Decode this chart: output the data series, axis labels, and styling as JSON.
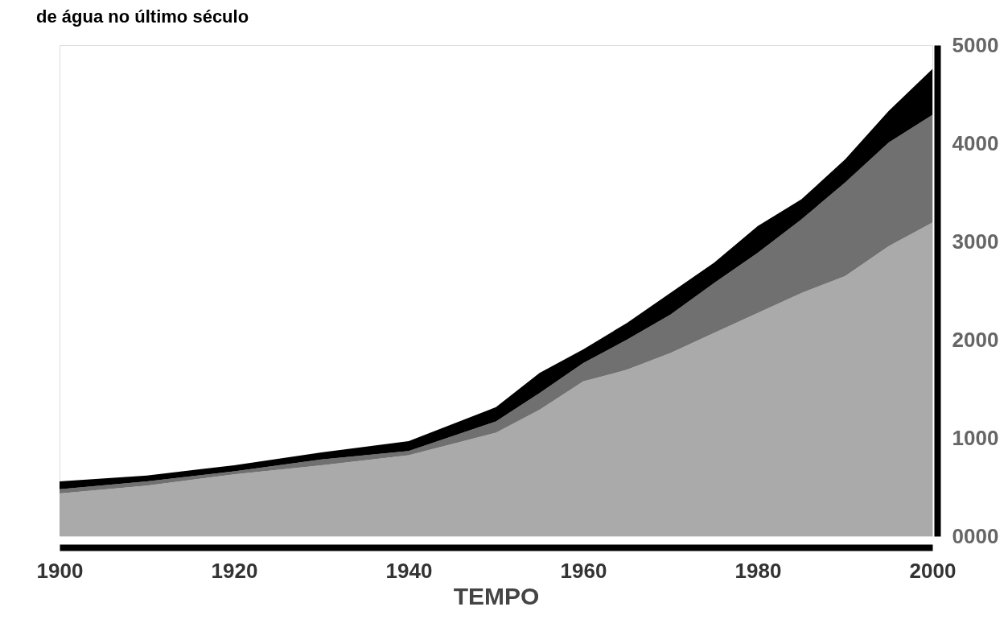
{
  "chart_data": {
    "type": "area",
    "title": "de água no último século",
    "xlabel": "TEMPO",
    "stacked": true,
    "x": [
      1900,
      1910,
      1920,
      1930,
      1940,
      1950,
      1955,
      1960,
      1965,
      1970,
      1975,
      1980,
      1985,
      1990,
      1995,
      2000
    ],
    "series": [
      {
        "color": "#aaaaaa",
        "values": [
          435,
          515,
          630,
          722,
          823,
          1054,
          1287,
          1575,
          1694,
          1864,
          2069,
          2272,
          2476,
          2648,
          2952,
          3192
        ]
      },
      {
        "color": "#707070",
        "values": [
          43,
          43,
          29,
          58,
          44,
          115,
          169,
          188,
          306,
          392,
          509,
          613,
          750,
          952,
          1056,
          1097
        ]
      },
      {
        "color": "#000000",
        "values": [
          80,
          58,
          63,
          72,
          100,
          144,
          206,
          138,
          171,
          221,
          206,
          273,
          204,
          237,
          322,
          467
        ]
      }
    ],
    "xlim": [
      1900,
      2000
    ],
    "xticks": [
      1900,
      1920,
      1940,
      1960,
      1980,
      2000
    ],
    "ylim": [
      0,
      5000
    ],
    "yticks": [
      {
        "value": 0,
        "label": "0000"
      },
      1000,
      2000,
      3000,
      4000,
      5000
    ],
    "grid": false,
    "legend": false
  }
}
